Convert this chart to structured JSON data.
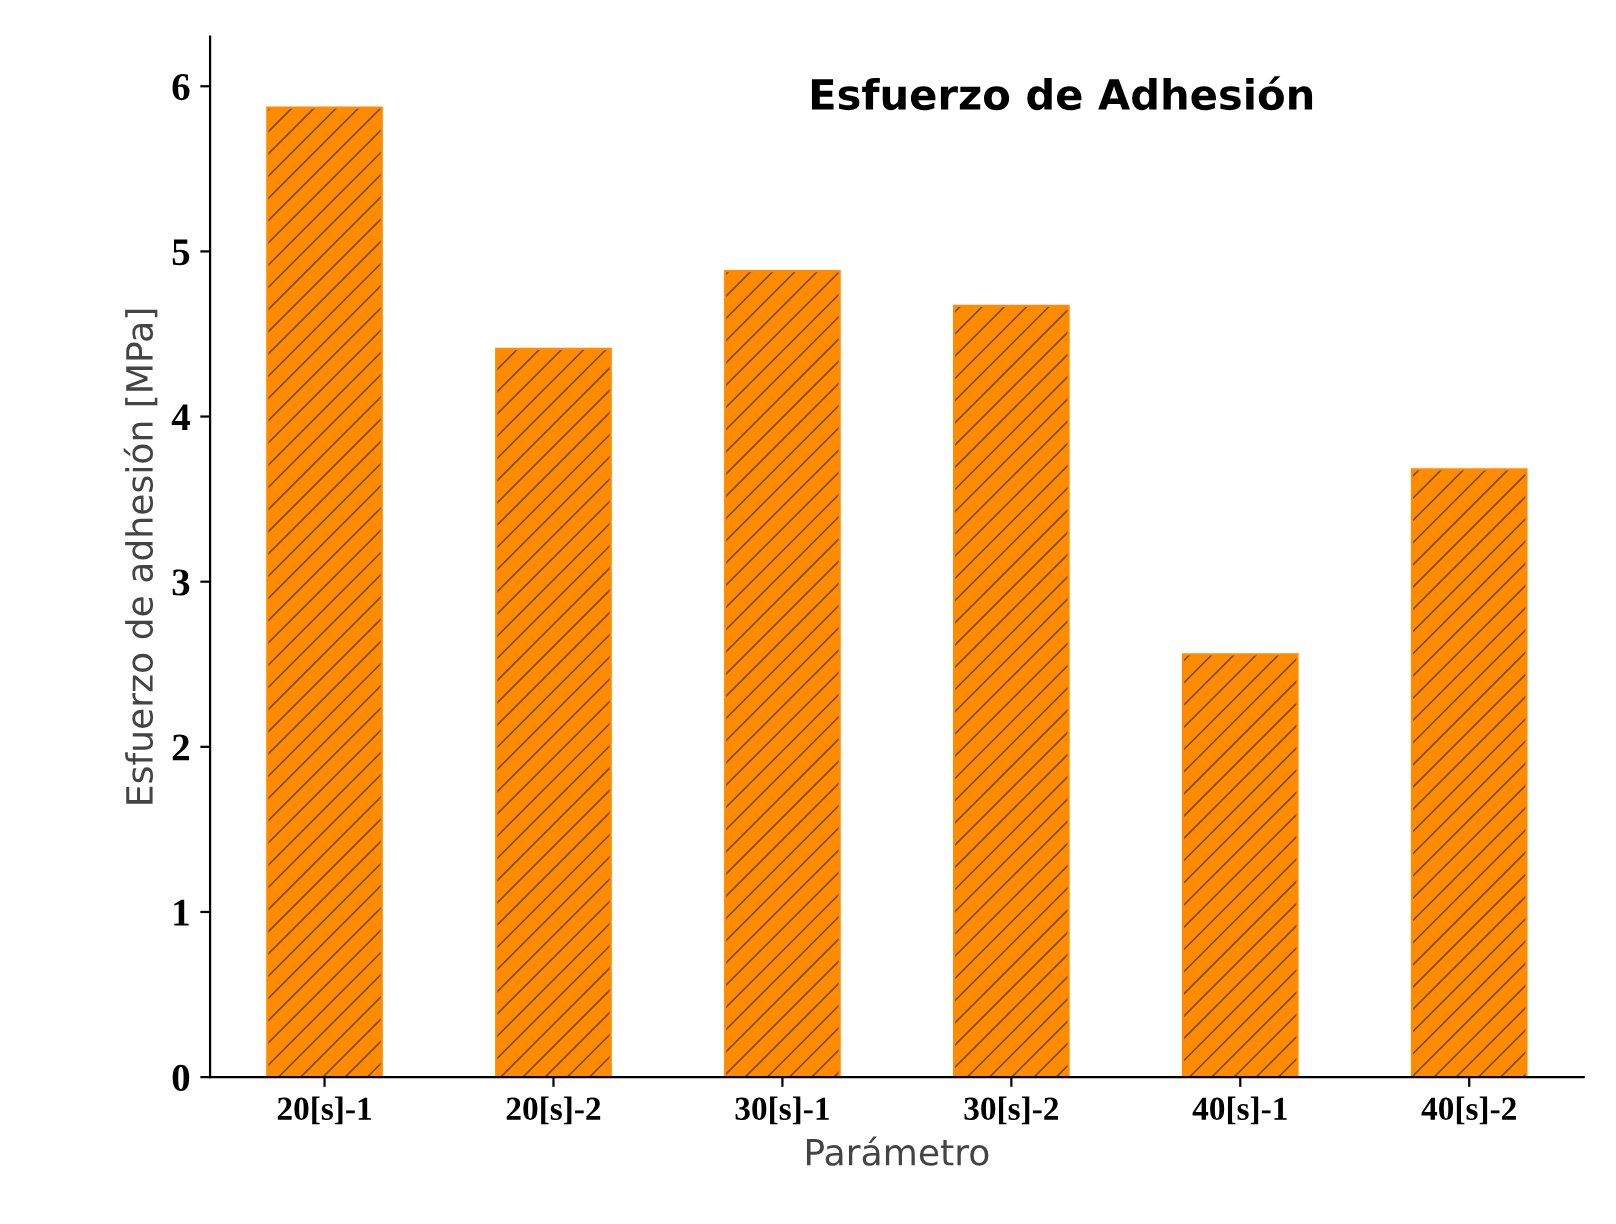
{
  "chart_data": {
    "type": "bar",
    "title": "Esfuerzo de Adhesión",
    "xlabel": "Parámetro",
    "ylabel": "Esfuerzo de adhesión [MPa]",
    "categories": [
      "20[s]-1",
      "20[s]-2",
      "30[s]-1",
      "30[s]-2",
      "40[s]-1",
      "40[s]-2"
    ],
    "values": [
      5.87,
      4.41,
      4.88,
      4.67,
      2.56,
      3.68
    ],
    "color": "#ff8c00",
    "ylim": [
      0,
      6.3
    ],
    "yticks": [
      0,
      1,
      2,
      3,
      4,
      5,
      6
    ],
    "grid": false,
    "legend": false
  }
}
